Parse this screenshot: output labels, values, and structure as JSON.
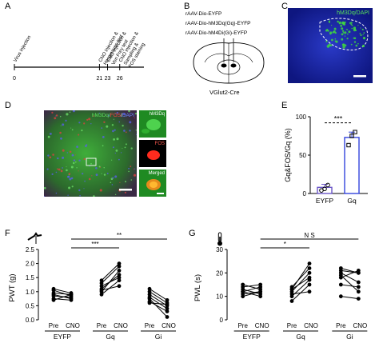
{
  "panels": {
    "a": "A",
    "b": "B",
    "c": "C",
    "d": "D",
    "e": "E",
    "f": "F",
    "g": "G"
  },
  "timeline": {
    "events": [
      {
        "day": 0,
        "label": "Virus injection"
      },
      {
        "day": 21,
        "label": "CNO injection & Hargreaves test"
      },
      {
        "day": 23,
        "label": "CNO injection & Von Frey test"
      },
      {
        "day": 26,
        "label": "CNO injection & Sampling & FOS staining"
      }
    ],
    "tick_labels": [
      "0",
      "21",
      "23",
      "26"
    ]
  },
  "viruses": {
    "lines": [
      "rAAV-Dio-EYFP",
      "rAAV-Dio-hM3Dq(Gq)-EYFP",
      "rAAV-Dio-hM4Di(Gi)-EYFP"
    ],
    "mouse_line": "VGlut2-Cre"
  },
  "micrographs": {
    "c_label": "hM3Dq/DAPI",
    "d_label_parts": [
      "hM3Dq/",
      "FOS",
      "/",
      "DAPI"
    ],
    "d_inset_labels": [
      "hM3Dq",
      "FOS",
      "Merged"
    ],
    "colors": {
      "green": "#39c43a",
      "red": "#ff2a2a",
      "blue": "#3a55ff",
      "dapi_bg": "#1b2aa8"
    }
  },
  "chart_data": [
    {
      "panel": "E",
      "type": "bar",
      "categories": [
        "EYFP",
        "Gq"
      ],
      "values": [
        8,
        73
      ],
      "points": [
        [
          4,
          6,
          11
        ],
        [
          63,
          75,
          80
        ]
      ],
      "ylabel": "Gq&FOS/Gq (%)",
      "ylim": [
        0,
        100
      ],
      "yticks": [
        0,
        50,
        100
      ],
      "significance": "***",
      "colors": {
        "EYFP": "#6a55c8",
        "Gq": "#3344dd"
      }
    },
    {
      "panel": "F",
      "type": "line",
      "ylabel": "PWT (g)",
      "ylim": [
        0,
        2.5
      ],
      "yticks": [
        "0.0",
        "0.5",
        "1.0",
        "1.5",
        "2.0",
        "2.5"
      ],
      "groups": [
        "EYFP",
        "Gq",
        "Gi"
      ],
      "conditions": [
        "Pre",
        "CNO"
      ],
      "pairs": {
        "EYFP": [
          [
            0.95,
            0.9
          ],
          [
            1.05,
            0.85
          ],
          [
            0.85,
            0.8
          ],
          [
            0.9,
            0.75
          ],
          [
            0.75,
            0.7
          ],
          [
            1.1,
            0.95
          ],
          [
            0.7,
            0.9
          ]
        ],
        "Gq": [
          [
            1.3,
            1.9
          ],
          [
            1.0,
            1.75
          ],
          [
            1.1,
            1.6
          ],
          [
            1.4,
            2.0
          ],
          [
            0.9,
            1.4
          ],
          [
            1.2,
            1.5
          ],
          [
            1.05,
            1.2
          ]
        ],
        "Gi": [
          [
            1.0,
            0.6
          ],
          [
            0.9,
            0.5
          ],
          [
            0.8,
            0.4
          ],
          [
            1.1,
            0.7
          ],
          [
            0.65,
            0.3
          ],
          [
            0.75,
            0.1
          ],
          [
            0.6,
            0.55
          ]
        ]
      },
      "significance": [
        {
          "label": "***",
          "from": "EYFP",
          "to": "Gq"
        },
        {
          "label": "**",
          "from": "EYFP",
          "to": "Gi"
        }
      ]
    },
    {
      "panel": "G",
      "type": "line",
      "ylabel": "PWL (s)",
      "ylim": [
        0,
        30
      ],
      "yticks": [
        "0",
        "10",
        "20",
        "30"
      ],
      "groups": [
        "EYFP",
        "Gq",
        "Gi"
      ],
      "conditions": [
        "Pre",
        "CNO"
      ],
      "pairs": {
        "EYFP": [
          [
            12,
            14
          ],
          [
            14,
            15
          ],
          [
            11,
            12
          ],
          [
            13,
            11
          ],
          [
            15,
            13
          ],
          [
            10,
            12
          ],
          [
            12,
            10
          ]
        ],
        "Gq": [
          [
            12,
            20
          ],
          [
            13,
            24
          ],
          [
            10,
            17
          ],
          [
            8,
            15
          ],
          [
            14,
            22
          ],
          [
            11,
            12
          ],
          [
            13,
            18
          ]
        ],
        "Gi": [
          [
            22,
            20
          ],
          [
            20,
            16
          ],
          [
            15,
            14
          ],
          [
            18,
            21
          ],
          [
            19,
            12
          ],
          [
            21,
            20
          ],
          [
            10,
            9
          ]
        ]
      },
      "significance": [
        {
          "label": "*",
          "from": "EYFP",
          "to": "Gq"
        },
        {
          "label": "N S",
          "from": "EYFP",
          "to": "Gi"
        }
      ]
    }
  ]
}
